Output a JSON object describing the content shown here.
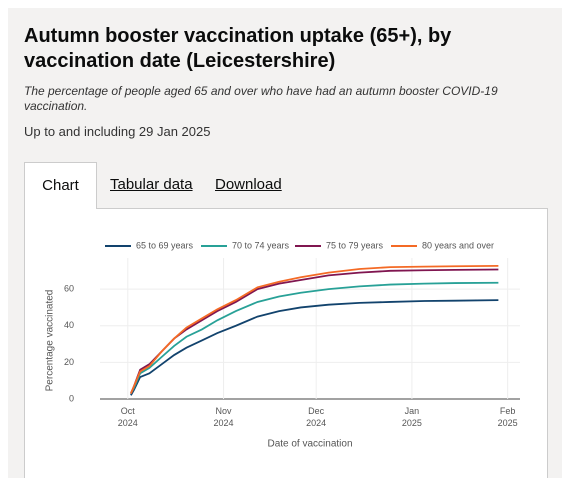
{
  "header": {
    "title": "Autumn booster vaccination uptake (65+), by vaccination date (Leicestershire)",
    "description": "The percentage of people aged 65 and over who have had an autumn booster COVID-19 vaccination.",
    "date_note": "Up to and including 29 Jan 2025"
  },
  "tabs": [
    "Chart",
    "Tabular data",
    "Download"
  ],
  "chart_data": {
    "type": "line",
    "x": [
      "2024-10-02",
      "2024-10-03",
      "2024-10-05",
      "2024-10-08",
      "2024-10-12",
      "2024-10-16",
      "2024-10-20",
      "2024-10-25",
      "2024-10-30",
      "2024-11-05",
      "2024-11-12",
      "2024-11-19",
      "2024-11-26",
      "2024-12-05",
      "2024-12-15",
      "2024-12-25",
      "2025-01-05",
      "2025-01-15",
      "2025-01-29"
    ],
    "series": [
      {
        "name": "65 to 69 years",
        "color": "#12436d",
        "values": [
          2,
          5,
          12,
          14,
          19,
          24,
          28,
          32,
          36,
          40,
          45,
          48,
          50,
          51.5,
          52.5,
          53,
          53.5,
          53.7,
          54
        ]
      },
      {
        "name": "70 to 74 years",
        "color": "#28a197",
        "values": [
          3,
          6,
          14,
          17,
          23,
          29,
          34,
          38,
          43,
          48,
          53,
          56,
          58,
          60,
          61.5,
          62.5,
          63,
          63.3,
          63.5
        ]
      },
      {
        "name": "75 to 79 years",
        "color": "#801650",
        "values": [
          3,
          7,
          16,
          19,
          26,
          33,
          38,
          43,
          48,
          53,
          60,
          63,
          65,
          67.5,
          69,
          70,
          70.3,
          70.5,
          70.7
        ]
      },
      {
        "name": "80 years and over",
        "color": "#f46a25",
        "values": [
          3,
          7,
          15,
          18,
          26,
          33,
          39,
          44,
          49,
          54,
          61,
          64,
          66.5,
          69,
          71,
          72,
          72.3,
          72.5,
          72.7
        ]
      }
    ],
    "x_label": "Date of vaccination",
    "y_label": "Percentage vaccinated",
    "xlim": [
      "2024-09-22",
      "2025-02-05"
    ],
    "xticks": [
      {
        "value": "2024-10-01",
        "label": "Oct 2024"
      },
      {
        "value": "2024-11-01",
        "label": "Nov 2024"
      },
      {
        "value": "2024-12-01",
        "label": "Dec 2024"
      },
      {
        "value": "2025-01-01",
        "label": "Jan 2025"
      },
      {
        "value": "2025-02-01",
        "label": "Feb 2025"
      }
    ],
    "ylim": [
      0,
      77
    ],
    "yticks": [
      0,
      20,
      40,
      60
    ],
    "grid": true,
    "legend": "top"
  }
}
